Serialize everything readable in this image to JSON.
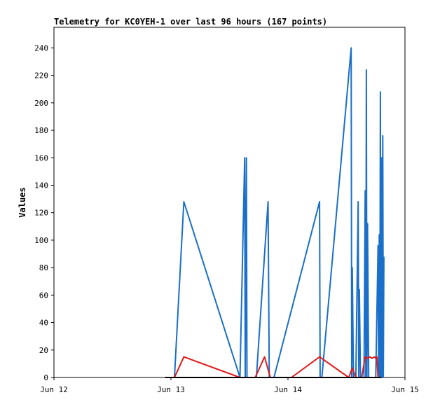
{
  "chart_data": {
    "type": "line",
    "title": "Telemetry for KC0YEH-1 over last 96 hours (167 points)",
    "xlabel": "",
    "ylabel": "Values",
    "xlim": [
      0,
      3
    ],
    "ylim": [
      0,
      255
    ],
    "x_ticks": [
      {
        "value": 0,
        "label": "Jun 12"
      },
      {
        "value": 1,
        "label": "Jun 13"
      },
      {
        "value": 2,
        "label": "Jun 14"
      },
      {
        "value": 3,
        "label": "Jun 15"
      }
    ],
    "y_ticks": [
      0,
      20,
      40,
      60,
      80,
      100,
      120,
      140,
      160,
      180,
      200,
      220,
      240
    ],
    "grid": false,
    "legend": "none",
    "series": [
      {
        "color": "#1a6fc8",
        "x": [
          1.03,
          1.11,
          1.59,
          1.63,
          1.635,
          1.645,
          1.65,
          1.73,
          1.83,
          1.84,
          1.88,
          2.27,
          2.275,
          2.28,
          2.29,
          2.54,
          2.545,
          2.55,
          2.56,
          2.57,
          2.58,
          2.6,
          2.605,
          2.61,
          2.62,
          2.63,
          2.65,
          2.66,
          2.665,
          2.67,
          2.675,
          2.68,
          2.69,
          2.7,
          2.75,
          2.77,
          2.775,
          2.78,
          2.785,
          2.79,
          2.795,
          2.8,
          2.805,
          2.81,
          2.815,
          2.82
        ],
        "values": [
          0,
          128,
          0,
          160,
          0,
          160,
          0,
          0,
          128,
          0,
          0,
          128,
          0,
          0,
          0,
          240,
          0,
          80,
          0,
          0,
          0,
          128,
          0,
          64,
          0,
          0,
          0,
          136,
          0,
          224,
          0,
          112,
          0,
          0,
          0,
          96,
          0,
          104,
          0,
          208,
          0,
          160,
          0,
          176,
          0,
          88
        ]
      },
      {
        "color": "#e01b1b",
        "x": [
          1.03,
          1.11,
          1.59,
          1.72,
          1.8,
          1.85,
          1.88,
          1.99,
          2.03,
          2.27,
          2.52,
          2.55,
          2.58,
          2.63,
          2.66,
          2.68,
          2.7,
          2.72,
          2.74,
          2.75,
          2.76,
          2.77,
          2.78
        ],
        "values": [
          0,
          15,
          0,
          0,
          15,
          0,
          0,
          0,
          0,
          15,
          0,
          7,
          0,
          0,
          15,
          14,
          15,
          14,
          15,
          14,
          15,
          0,
          0
        ]
      },
      {
        "color": "#000000",
        "x": [
          0.95,
          2.8
        ],
        "values": [
          0,
          0
        ]
      }
    ]
  }
}
